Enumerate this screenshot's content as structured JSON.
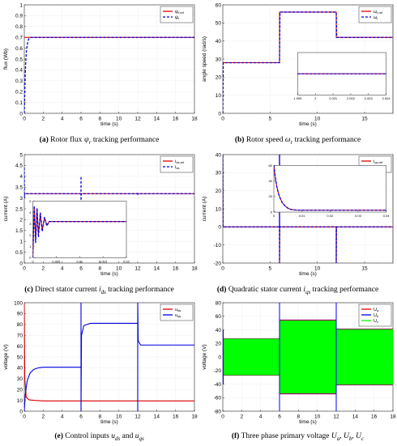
{
  "colors": {
    "ref": "#e00000",
    "actual": "#0000e0",
    "ua": "#ff0000",
    "ub": "#0000ff",
    "uc": "#00ff00"
  },
  "chart_data": [
    {
      "id": "a",
      "type": "line",
      "caption": {
        "tag": "(a)",
        "text": "Rotor flux",
        "sym": "ψ",
        "sub": "r",
        "rest": "tracking performance"
      },
      "xlabel": "time (s)",
      "ylabel": "flux (Wb)",
      "xlim": [
        0,
        18
      ],
      "ylim": [
        0,
        1
      ],
      "xticks": [
        "0",
        "2",
        "4",
        "6",
        "8",
        "10",
        "12",
        "14",
        "16",
        "18"
      ],
      "yticks": [
        "0",
        "0.1",
        "0.2",
        "0.3",
        "0.4",
        "0.5",
        "0.6",
        "0.7",
        "0.8",
        "0.9",
        "1"
      ],
      "legend": {
        "position": "top-right",
        "labels": [
          "ψr,ref",
          "ψr"
        ]
      },
      "grid": true,
      "series": [
        {
          "name": "ψr,ref",
          "color": "#e00000",
          "dash": false,
          "x": [
            0,
            18
          ],
          "y": [
            0.7,
            0.7
          ]
        },
        {
          "name": "ψr",
          "color": "#0000e0",
          "dash": true,
          "x": [
            0,
            0.05,
            0.1,
            0.15,
            0.2,
            0.3,
            0.4,
            0.5,
            0.6,
            0.7,
            0.8,
            18
          ],
          "y": [
            0,
            0.2,
            0.36,
            0.47,
            0.55,
            0.63,
            0.67,
            0.69,
            0.695,
            0.7,
            0.7,
            0.7
          ]
        }
      ]
    },
    {
      "id": "b",
      "type": "line",
      "caption": {
        "tag": "(b)",
        "text": "Rotor speed",
        "sym": "ω",
        "sub": "r",
        "rest": "tracking performance"
      },
      "xlabel": "time (s)",
      "ylabel": "angle speed (rad/s)",
      "xlim": [
        0,
        18
      ],
      "ylim": [
        0,
        60
      ],
      "xticks": [
        "0",
        "5",
        "10",
        "15"
      ],
      "yticks": [
        "0",
        "10",
        "20",
        "30",
        "40",
        "50",
        "60"
      ],
      "legend": {
        "position": "top-right",
        "labels": [
          "ωr,ref",
          "ωr"
        ]
      },
      "grid": true,
      "series": [
        {
          "name": "ωr,ref",
          "color": "#e00000",
          "dash": false,
          "x": [
            0,
            6,
            6,
            12,
            12,
            18
          ],
          "y": [
            28,
            28,
            56,
            56,
            42,
            42
          ]
        },
        {
          "name": "ωr",
          "color": "#0000e0",
          "dash": true,
          "x": [
            0,
            0.05,
            6,
            6.05,
            12,
            12.05,
            18
          ],
          "y": [
            0,
            28,
            28,
            56,
            56,
            42,
            42
          ]
        }
      ],
      "inset": {
        "xlim": [
          1.999,
          2.004
        ],
        "ylim": [
          26,
          30
        ],
        "xticks": [
          "1.999",
          "2",
          "2.001",
          "2.002",
          "2.003",
          "2.004"
        ],
        "series": [
          {
            "color": "#e00000",
            "dash": false,
            "x": [
              1.999,
              2.004
            ],
            "y": [
              28,
              28
            ]
          },
          {
            "color": "#0000e0",
            "dash": true,
            "x": [
              1.999,
              2.004
            ],
            "y": [
              28,
              28
            ]
          }
        ]
      }
    },
    {
      "id": "c",
      "type": "line",
      "caption": {
        "tag": "(c)",
        "text": "Direct stator current",
        "sym": "i",
        "sub": "ds",
        "rest": "tracking performance"
      },
      "xlabel": "time (s)",
      "ylabel": "current (A)",
      "xlim": [
        0,
        18
      ],
      "ylim": [
        0,
        5
      ],
      "xticks": [
        "0",
        "2",
        "4",
        "6",
        "8",
        "10",
        "12",
        "14",
        "16",
        "18"
      ],
      "yticks": [
        "0",
        "0.5",
        "1",
        "1.5",
        "2",
        "2.5",
        "3",
        "3.5",
        "4",
        "4.5",
        "5"
      ],
      "legend": {
        "position": "top-right",
        "labels": [
          "ids,ref",
          "ids"
        ]
      },
      "grid": true,
      "series": [
        {
          "name": "ids,ref",
          "color": "#e00000",
          "dash": false,
          "x": [
            0,
            18
          ],
          "y": [
            3.2,
            3.2
          ]
        },
        {
          "name": "ids",
          "color": "#0000e0",
          "dash": true,
          "x": [
            0,
            0.01,
            0.02,
            6,
            6,
            6,
            6.02,
            12,
            12,
            12,
            12.02,
            18
          ],
          "y": [
            4.4,
            3.0,
            3.2,
            3.2,
            4.0,
            2.7,
            3.2,
            3.2,
            3.25,
            3.15,
            3.2,
            3.2
          ]
        }
      ],
      "inset": {
        "xlim": [
          0,
          0.02
        ],
        "ylim": [
          0,
          5
        ],
        "xticks": [
          "0",
          "0.005",
          "0.01",
          "0.015",
          "0.02"
        ],
        "yticks": [
          "0",
          "1",
          "2",
          "3",
          "4",
          "5"
        ],
        "series": [
          {
            "color": "#e00000",
            "dash": false,
            "x": [
              0,
              0.0003,
              0.0006,
              0.0009,
              0.0012,
              0.0016,
              0.002,
              0.0025,
              0.003,
              0.0035,
              0.02
            ],
            "y": [
              0,
              4.5,
              1.5,
              4.3,
              2.0,
              3.9,
              2.5,
              3.5,
              2.9,
              3.2,
              3.2
            ]
          },
          {
            "color": "#0000e0",
            "dash": true,
            "x": [
              0,
              0.0003,
              0.0006,
              0.0009,
              0.0012,
              0.0016,
              0.002,
              0.0025,
              0.003,
              0.0035,
              0.02
            ],
            "y": [
              0,
              4.6,
              1.3,
              4.4,
              1.8,
              4.0,
              2.3,
              3.6,
              2.8,
              3.2,
              3.2
            ]
          }
        ]
      }
    },
    {
      "id": "d",
      "type": "line",
      "caption": {
        "tag": "(d)",
        "text": "Quadratic stator current",
        "sym": "i",
        "sub": "qs",
        "rest": "tracking performance"
      },
      "xlabel": "time (s)",
      "ylabel": "current (A)",
      "xlim": [
        0,
        18
      ],
      "ylim": [
        -20,
        40
      ],
      "xticks": [
        "0",
        "5",
        "10",
        "15"
      ],
      "yticks": [
        "-20",
        "-10",
        "0",
        "10",
        "20",
        "30",
        "40"
      ],
      "legend": {
        "position": "top-right",
        "labels": [
          "iqs,ref",
          "iqs"
        ]
      },
      "grid": true,
      "series": [
        {
          "name": "iqs,ref",
          "color": "#e00000",
          "dash": false,
          "x": [
            0,
            0,
            0.02,
            6,
            6,
            6,
            6.02,
            12,
            12,
            12,
            12.02,
            18
          ],
          "y": [
            0,
            40,
            0,
            0,
            40,
            -20,
            0,
            0,
            -20,
            -20,
            0,
            0
          ]
        },
        {
          "name": "iqs",
          "color": "#0000e0",
          "dash": true,
          "x": [
            0,
            0,
            0.02,
            6,
            6,
            6,
            6.02,
            12,
            12,
            12,
            12.02,
            18
          ],
          "y": [
            0,
            40,
            0,
            0,
            40,
            -20,
            0,
            0,
            -20,
            -20,
            0,
            0
          ]
        }
      ],
      "inset": {
        "xlim": [
          0,
          0.04
        ],
        "ylim": [
          0,
          60
        ],
        "xticks": [
          "0",
          "0.01",
          "0.02",
          "0.03",
          "0.04"
        ],
        "yticks": [
          "0",
          "20",
          "40",
          "60"
        ],
        "series": [
          {
            "color": "#e00000",
            "dash": false,
            "x": [
              0,
              0.0005,
              0.001,
              0.0015,
              0.002,
              0.003,
              0.004,
              0.005,
              0.006,
              0.008,
              0.04
            ],
            "y": [
              60,
              45,
              34,
              26,
              20,
              12,
              8,
              5,
              3.5,
              2.5,
              2.5
            ]
          },
          {
            "color": "#0000e0",
            "dash": true,
            "x": [
              0,
              0.0005,
              0.001,
              0.0015,
              0.002,
              0.003,
              0.004,
              0.005,
              0.006,
              0.008,
              0.04
            ],
            "y": [
              60,
              45,
              34,
              26,
              20,
              12,
              8,
              5,
              3.5,
              2.5,
              2.5
            ]
          }
        ]
      }
    },
    {
      "id": "e",
      "type": "line",
      "caption": {
        "tag": "(e)",
        "text": "Control inputs",
        "sym": "u",
        "sub": "ds",
        "rest": "and",
        "sym2": "u",
        "sub2": "qs"
      },
      "xlabel": "time (s)",
      "ylabel": "voltage (V)",
      "xlim": [
        0,
        18
      ],
      "ylim": [
        0,
        100
      ],
      "xticks": [
        "0",
        "2",
        "4",
        "6",
        "8",
        "10",
        "12",
        "14",
        "16",
        "18"
      ],
      "yticks": [
        "0",
        "10",
        "20",
        "30",
        "40",
        "50",
        "60",
        "70",
        "80",
        "90",
        "100"
      ],
      "legend": {
        "position": "top-right",
        "labels": [
          "uds",
          "uqs"
        ]
      },
      "grid": true,
      "series": [
        {
          "name": "uds",
          "color": "#e00000",
          "dash": false,
          "x": [
            0,
            0.05,
            0.2,
            0.5,
            1,
            2,
            18
          ],
          "y": [
            100,
            30,
            13,
            10.5,
            10,
            9.5,
            9.5
          ]
        },
        {
          "name": "uqs",
          "color": "#0000e0",
          "dash": false,
          "x": [
            0,
            0.1,
            0.3,
            0.6,
            1,
            1.5,
            2,
            6,
            6,
            6,
            6.05,
            6.3,
            7,
            12,
            12,
            12,
            12.05,
            12.3,
            18
          ],
          "y": [
            0,
            15,
            28,
            35,
            38.5,
            40,
            40.5,
            40.5,
            100,
            0,
            70,
            79,
            81,
            81,
            0,
            100,
            65,
            61,
            61
          ]
        }
      ]
    },
    {
      "id": "f",
      "type": "area",
      "caption": {
        "tag": "(f)",
        "text": "Three phase primary voltage",
        "sym": "U",
        "sub": "a",
        "sym2": "U",
        "sub2": "b",
        "sym3": "U",
        "sub3": "c"
      },
      "xlabel": "time (s)",
      "ylabel": "voltage (V)",
      "xlim": [
        0,
        18
      ],
      "ylim": [
        -80,
        80
      ],
      "xticks": [
        "0",
        "2",
        "4",
        "6",
        "8",
        "10",
        "12",
        "14",
        "16",
        "18"
      ],
      "yticks": [
        "-80",
        "-60",
        "-40",
        "-20",
        "0",
        "20",
        "40",
        "60",
        "80"
      ],
      "legend": {
        "position": "top-right",
        "labels": [
          "Ua",
          "Ub",
          "Uc"
        ]
      },
      "grid": true,
      "envelope": {
        "segments": [
          {
            "x0": 0,
            "x1": 6,
            "amp": 27
          },
          {
            "x0": 6,
            "x1": 12,
            "amp": 54
          },
          {
            "x0": 12,
            "x1": 18,
            "amp": 41
          }
        ],
        "spikes": [
          {
            "x": 6,
            "y0": -80,
            "y1": 80,
            "color": "#0000ff"
          },
          {
            "x": 12,
            "y0": -80,
            "y1": 80,
            "color": "#0000ff"
          },
          {
            "x": 0.05,
            "y0": -40,
            "y1": 40,
            "color": "#0000ff"
          }
        ]
      }
    }
  ]
}
